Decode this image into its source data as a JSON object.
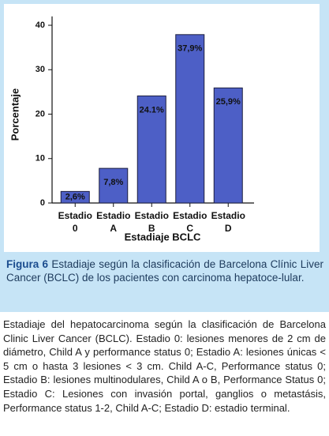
{
  "chart_data": {
    "type": "bar",
    "x_label": "Estadiaje BCLC",
    "y_label": "Porcentaje",
    "categories": [
      "Estadio 0",
      "Estadio A",
      "Estadio B",
      "Estadio C",
      "Estadio D"
    ],
    "values": [
      2.6,
      7.8,
      24.1,
      37.9,
      25.9
    ],
    "value_labels": [
      "2,6%",
      "7,8%",
      "24.1%",
      "37,9%",
      "25,9%"
    ],
    "color": "#4d5fc6",
    "ylim": [
      0,
      42
    ],
    "yticks": [
      0,
      10,
      20,
      30,
      40
    ],
    "grid": false
  },
  "caption": {
    "label": "Figura 6",
    "text": "Estadiaje según la clasificación de Barcelona Clínic Liver Cancer (BCLC) de los pacientes con carcinoma hepatoce-lular."
  },
  "body": "Estadiaje del hepatocarcinoma según la clasificación de Barcelona Clinic Liver Cancer (BCLC). Estadio 0: lesiones menores de 2 cm de diámetro, Child A y performance status 0; Estadio A: lesiones únicas < 5 cm o hasta 3 lesiones < 3 cm. Child A-C, Performance status 0; Estadio B: lesiones multinodulares, Child A o B, Performance Status 0; Estadio C: Lesiones con invasión portal, ganglios o metastásis, Performance status 1-2, Child A-C; Estadio D: estadio terminal."
}
